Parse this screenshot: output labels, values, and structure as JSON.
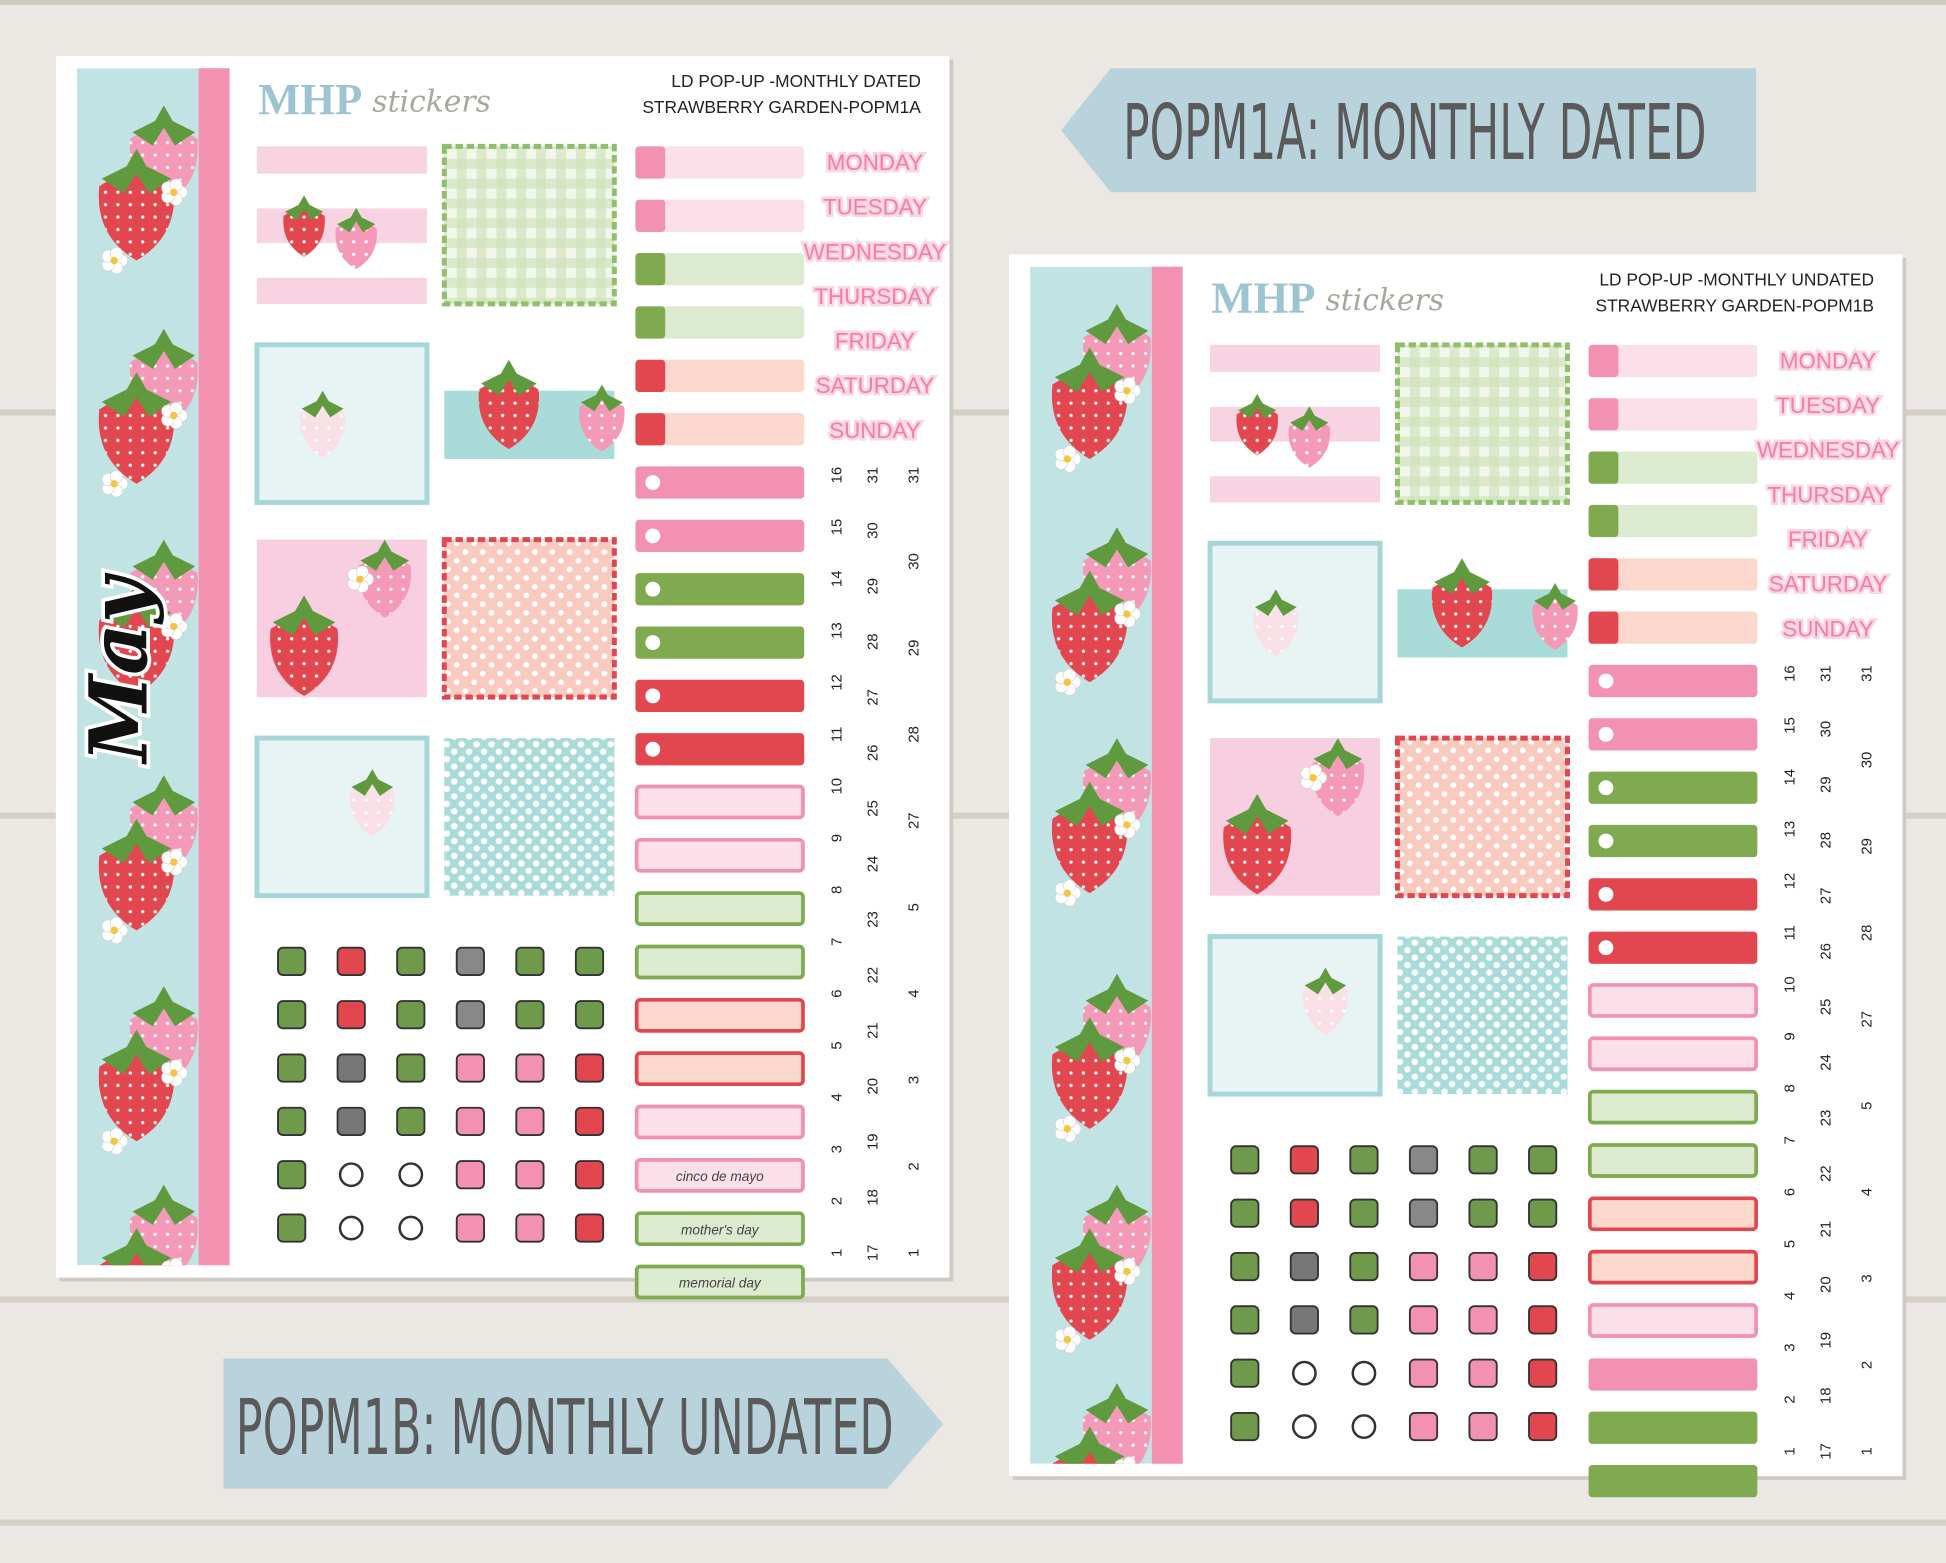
{
  "banners": {
    "top": "POPM1A: MONTHLY DATED",
    "bottom": "POPM1B: MONTHLY UNDATED"
  },
  "sheets": [
    {
      "logo": {
        "brand": "MHP",
        "script": "stickers"
      },
      "title_lines": [
        "LD POP-UP -MONTHLY DATED",
        "STRAWBERRY GARDEN-POPM1A"
      ],
      "month": "May",
      "weekdays": [
        "MONDAY",
        "TUESDAY",
        "WEDNESDAY",
        "THURSDAY",
        "FRIDAY",
        "SATURDAY",
        "SUNDAY"
      ],
      "date_columns": [
        [
          1,
          2,
          3,
          4,
          5,
          6,
          7,
          8,
          9,
          10,
          11,
          12,
          13,
          14,
          15,
          16
        ],
        [
          17,
          18,
          19,
          20,
          21,
          22,
          23,
          24,
          25,
          26,
          27,
          28,
          29,
          30,
          31
        ],
        [
          1,
          2,
          3,
          4,
          5,
          27,
          28,
          29,
          30,
          31
        ]
      ],
      "labels": [
        "cinco de mayo",
        "mother's day",
        "memorial day"
      ]
    },
    {
      "logo": {
        "brand": "MHP",
        "script": "stickers"
      },
      "title_lines": [
        "LD POP-UP -MONTHLY UNDATED",
        "STRAWBERRY GARDEN-POPM1B"
      ],
      "weekdays": [
        "MONDAY",
        "TUESDAY",
        "WEDNESDAY",
        "THURSDAY",
        "FRIDAY",
        "SATURDAY",
        "SUNDAY"
      ],
      "date_columns": [
        [
          1,
          2,
          3,
          4,
          5,
          6,
          7,
          8,
          9,
          10,
          11,
          12,
          13,
          14,
          15,
          16
        ],
        [
          17,
          18,
          19,
          20,
          21,
          22,
          23,
          24,
          25,
          26,
          27,
          28,
          29,
          30,
          31
        ],
        [
          1,
          2,
          3,
          4,
          5,
          27,
          28,
          29,
          30,
          31
        ]
      ]
    }
  ]
}
